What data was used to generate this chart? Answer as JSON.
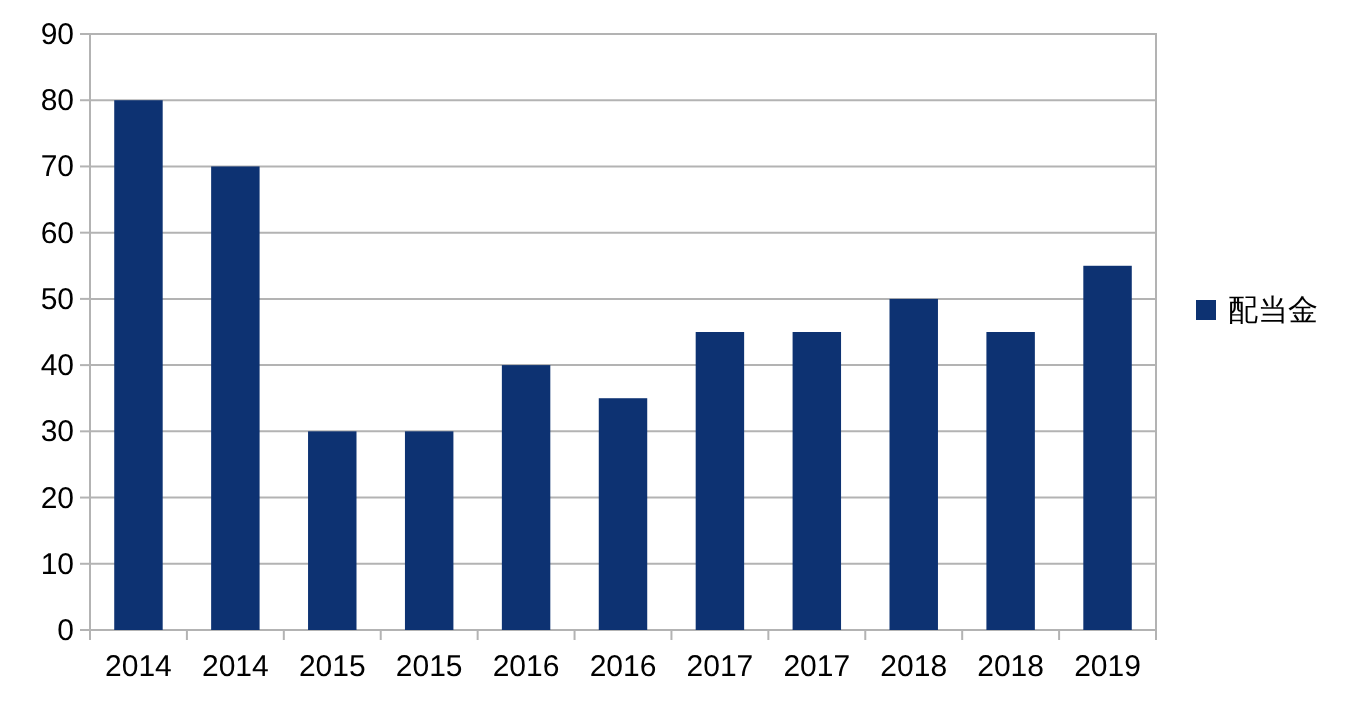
{
  "chart_data": {
    "type": "bar",
    "categories": [
      "2014",
      "2014",
      "2015",
      "2015",
      "2016",
      "2016",
      "2017",
      "2017",
      "2018",
      "2018",
      "2019"
    ],
    "series": [
      {
        "name": "配当金",
        "color": "#0d3272",
        "values": [
          80,
          70,
          30,
          30,
          40,
          35,
          45,
          45,
          50,
          45,
          55
        ]
      }
    ],
    "ylim": [
      0,
      90
    ],
    "yticks": [
      0,
      10,
      20,
      30,
      40,
      50,
      60,
      70,
      80,
      90
    ],
    "grid": "y",
    "legend": "right"
  }
}
